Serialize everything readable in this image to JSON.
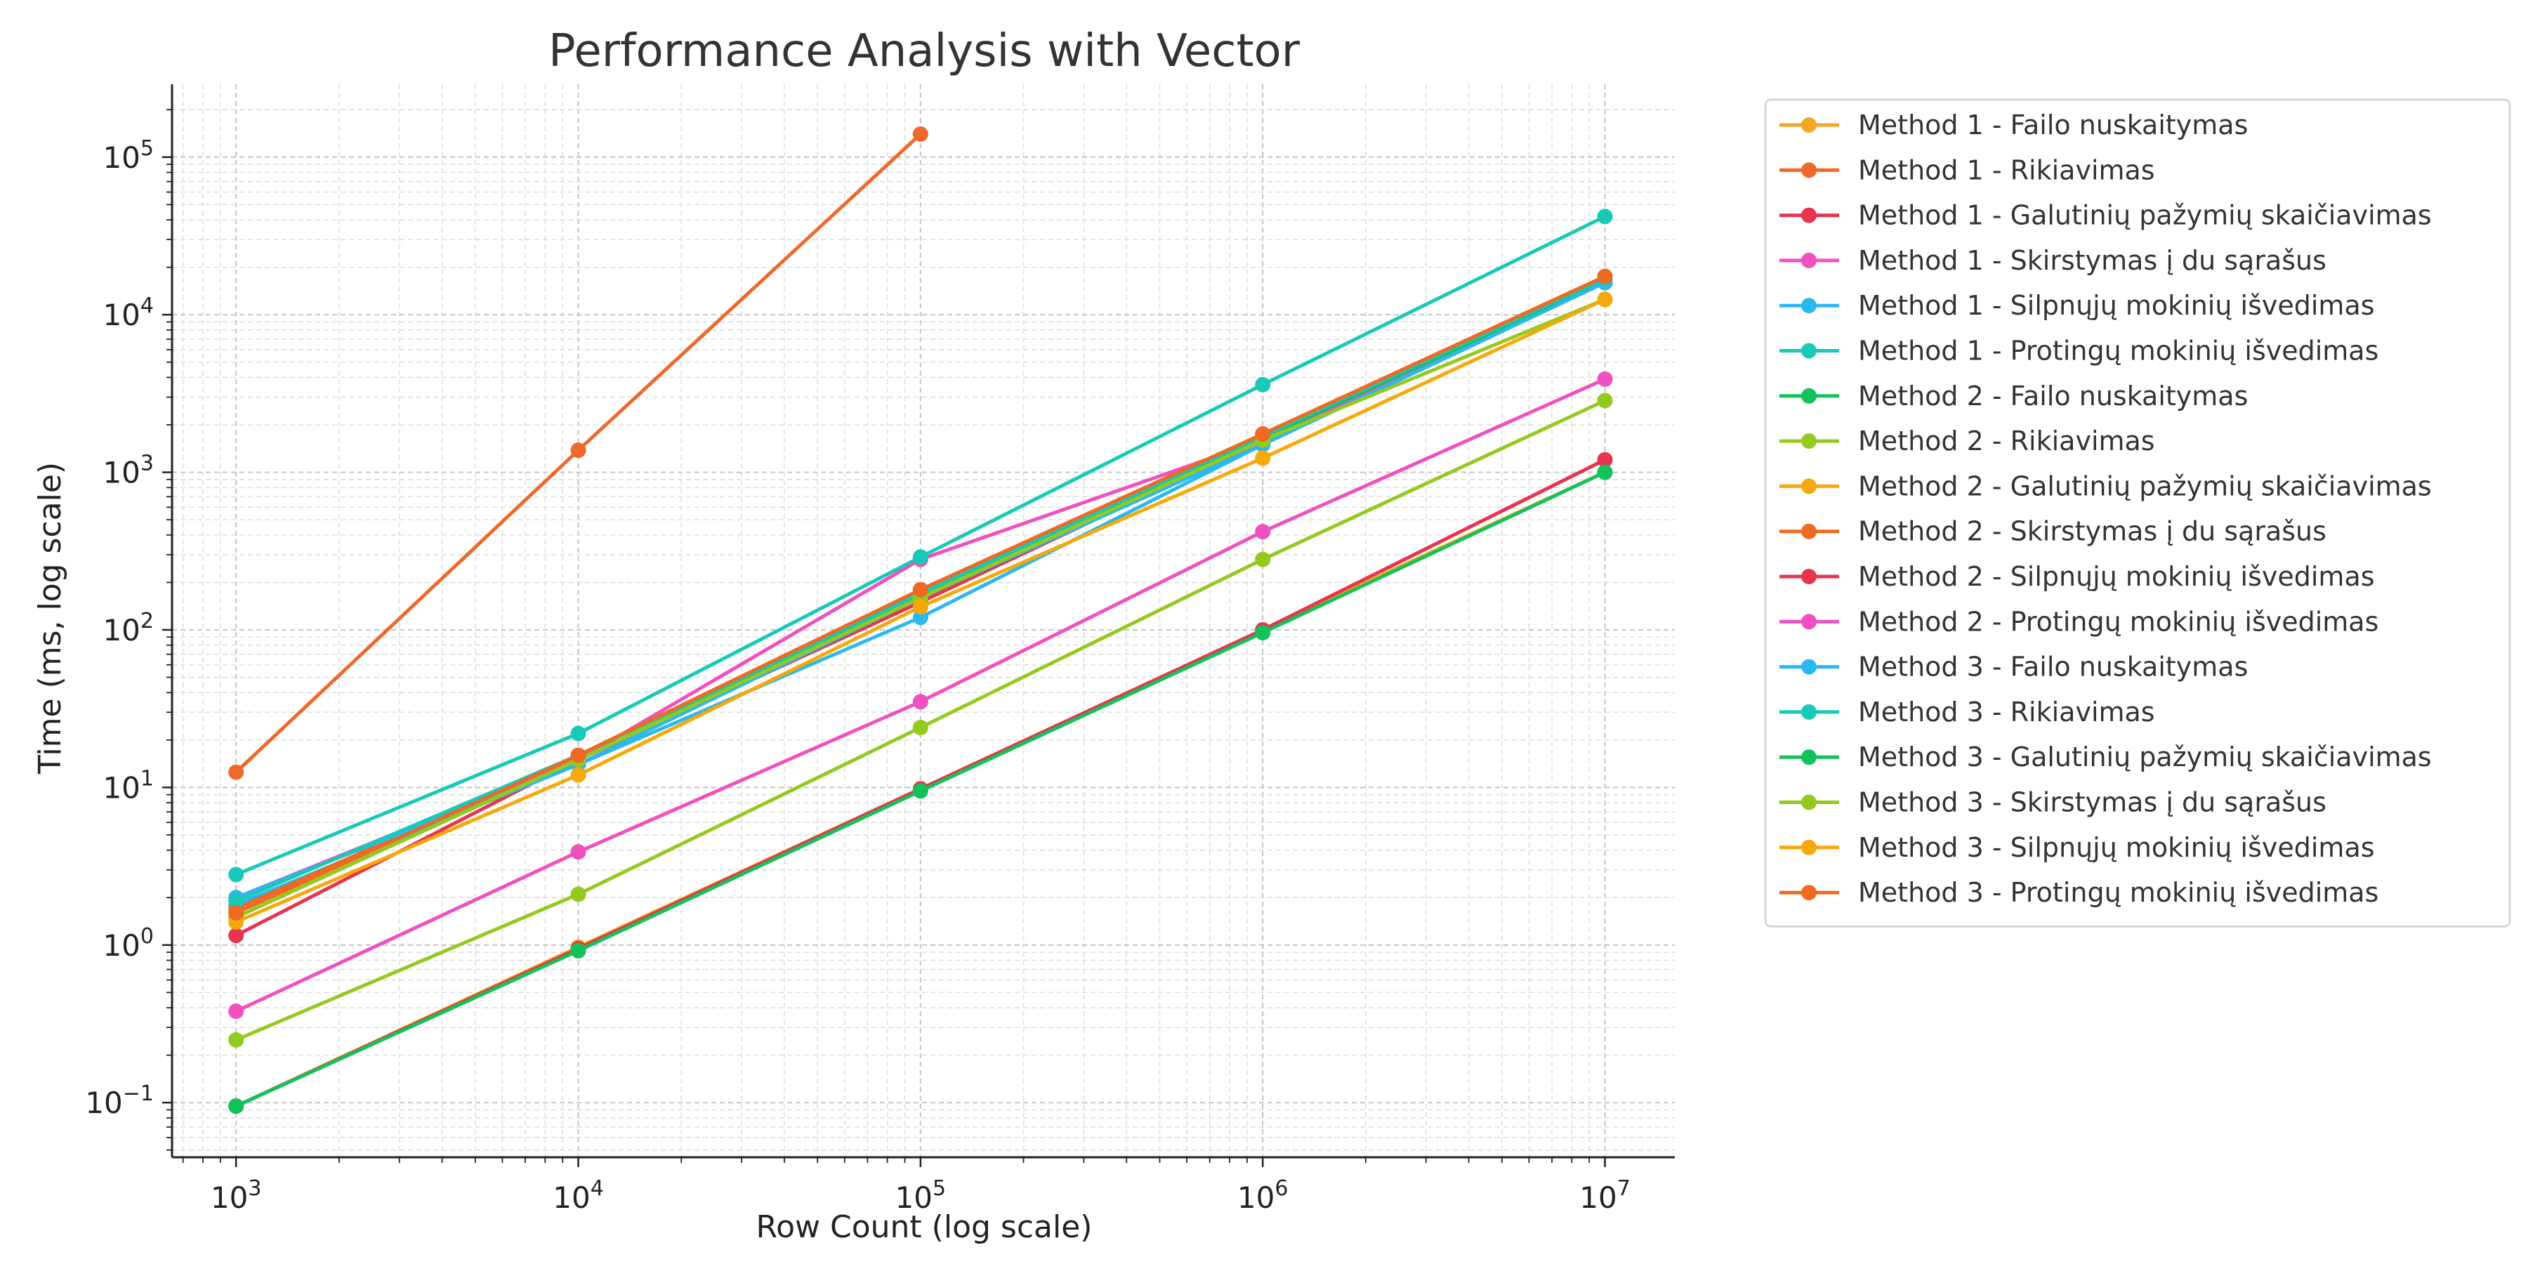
{
  "chart_data": {
    "type": "line",
    "title": "Performance Analysis with Vector",
    "xlabel": "Row Count (log scale)",
    "ylabel": "Time (ms, log scale)",
    "xscale": "log",
    "yscale": "log",
    "xlim": [
      650,
      16000000
    ],
    "ylim": [
      0.045,
      290000
    ],
    "grid": true,
    "legend_position": "outside-right",
    "x": [
      1000,
      10000,
      100000,
      1000000,
      10000000
    ],
    "x_ticks": [
      {
        "value": 1000,
        "base": "10",
        "exp": "3"
      },
      {
        "value": 10000,
        "base": "10",
        "exp": "4"
      },
      {
        "value": 100000,
        "base": "10",
        "exp": "5"
      },
      {
        "value": 1000000,
        "base": "10",
        "exp": "6"
      },
      {
        "value": 10000000,
        "base": "10",
        "exp": "7"
      }
    ],
    "y_ticks": [
      {
        "value": 0.1,
        "base": "10",
        "exp": "−1"
      },
      {
        "value": 1,
        "base": "10",
        "exp": "0"
      },
      {
        "value": 10,
        "base": "10",
        "exp": "1"
      },
      {
        "value": 100,
        "base": "10",
        "exp": "2"
      },
      {
        "value": 1000,
        "base": "10",
        "exp": "3"
      },
      {
        "value": 10000,
        "base": "10",
        "exp": "4"
      },
      {
        "value": 100000,
        "base": "10",
        "exp": "5"
      }
    ],
    "series": [
      {
        "name": "Method 1 - Failo nuskaitymas",
        "color": "#f5a623",
        "values": [
          1.6,
          15,
          150,
          1600,
          16000
        ]
      },
      {
        "name": "Method 1 - Rikiavimas",
        "color": "#f0682a",
        "values": [
          12.5,
          1380,
          140000,
          null,
          null
        ]
      },
      {
        "name": "Method 1 - Galutinių pažymių skaičiavimas",
        "color": "#e8344e",
        "values": [
          1.15,
          15,
          150,
          1600,
          16500
        ]
      },
      {
        "name": "Method 1 - Skirstymas į du sąrašus",
        "color": "#f050c0",
        "values": [
          2.0,
          15,
          280,
          1600,
          16000
        ]
      },
      {
        "name": "Method 1 - Silpnųjų mokinių išvedimas",
        "color": "#2bb8f0",
        "values": [
          1.8,
          14,
          160,
          1500,
          16000
        ]
      },
      {
        "name": "Method 1 - Protingų mokinių išvedimas",
        "color": "#17c9b8",
        "values": [
          2.8,
          22,
          290,
          3600,
          42000
        ]
      },
      {
        "name": "Method 2 - Failo nuskaitymas",
        "color": "#12c25a",
        "values": [
          1.5,
          15,
          165,
          1650,
          16500
        ]
      },
      {
        "name": "Method 2 - Rikiavimas",
        "color": "#94c91e",
        "values": [
          0.25,
          2.1,
          24,
          280,
          2850
        ]
      },
      {
        "name": "Method 2 - Galutinių pažymių skaičiavimas",
        "color": "#f7a80a",
        "values": [
          0.095,
          0.97,
          9.8,
          100,
          1000
        ]
      },
      {
        "name": "Method 2 - Skirstymas į du sąrašus",
        "color": "#ee6a23",
        "values": [
          1.7,
          16,
          175,
          1750,
          17500
        ]
      },
      {
        "name": "Method 2 - Silpnųjų mokinių išvedimas",
        "color": "#e8344e",
        "values": [
          0.095,
          0.95,
          9.8,
          100,
          1200
        ]
      },
      {
        "name": "Method 2 - Protingų mokinių išvedimas",
        "color": "#f050c0",
        "values": [
          0.38,
          3.9,
          35,
          420,
          3900
        ]
      },
      {
        "name": "Method 3 - Failo nuskaitymas",
        "color": "#2bb8f0",
        "values": [
          2.0,
          14,
          120,
          1500,
          16000
        ]
      },
      {
        "name": "Method 3 - Rikiavimas",
        "color": "#17c9b8",
        "values": [
          1.9,
          16,
          170,
          1700,
          17000
        ]
      },
      {
        "name": "Method 3 - Galutinių pažymių skaičiavimas",
        "color": "#12c25a",
        "values": [
          0.095,
          0.92,
          9.5,
          96,
          1000
        ]
      },
      {
        "name": "Method 3 - Skirstymas į du sąrašus",
        "color": "#94c91e",
        "values": [
          1.5,
          15,
          160,
          1600,
          12500
        ]
      },
      {
        "name": "Method 3 - Silpnųjų mokinių išvedimas",
        "color": "#f7a80a",
        "values": [
          1.4,
          12,
          140,
          1230,
          12500
        ]
      },
      {
        "name": "Method 3 - Protingų mokinių išvedimas",
        "color": "#ee6a23",
        "values": [
          1.6,
          16,
          180,
          1750,
          17500
        ]
      }
    ]
  }
}
